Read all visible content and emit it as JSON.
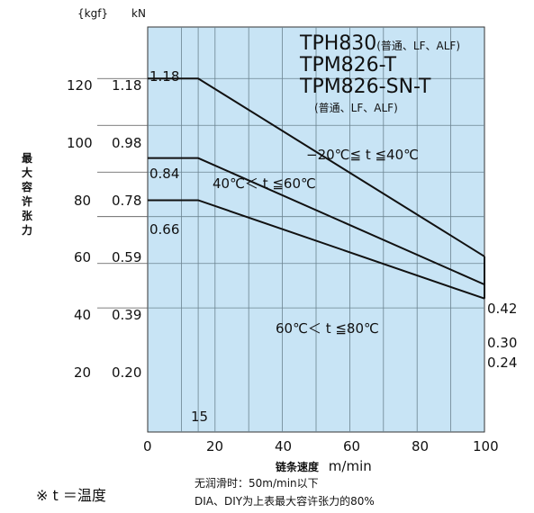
{
  "chart_data": {
    "type": "line",
    "title": "",
    "models": {
      "line1": "TPH830",
      "line1_suffix": "(普通、LF、ALF)",
      "line2": "TPM826-T",
      "line3": "TPM826-SN-T",
      "line3_suffix": "(普通、LF、ALF)"
    },
    "xlabel": "链条速度",
    "xunit": "m/min",
    "ylabel": "最大容许张力",
    "ylabel_kgf": "{kgf}",
    "ylabel_kn": "kN",
    "xlim": [
      0,
      100
    ],
    "ylim_kN": [
      -0.33,
      1.4
    ],
    "x_ticks": [
      "0",
      "20",
      "40",
      "60",
      "80",
      "100"
    ],
    "y_ticks_kgf": [
      "120",
      "100",
      "80",
      "60",
      "40",
      "20"
    ],
    "y_ticks_kn": [
      "1.18",
      "0.98",
      "0.78",
      "0.59",
      "0.39",
      "0.20"
    ],
    "y_tick_values_kN": [
      1.18,
      0.98,
      0.78,
      0.59,
      0.39,
      0.2
    ],
    "special_x_tick": "15",
    "special_x_value": 15,
    "grid": true,
    "series": [
      {
        "name": "−20℃≦ t ≦40℃",
        "x": [
          0,
          15,
          100
        ],
        "y": [
          1.18,
          1.18,
          0.42
        ],
        "start_label": "1.18",
        "end_label": "0.42"
      },
      {
        "name": "40℃＜ t ≦60℃",
        "x": [
          0,
          15,
          100
        ],
        "y": [
          0.84,
          0.84,
          0.3
        ],
        "start_label": "0.84",
        "end_label": "0.30"
      },
      {
        "name": "60℃＜ t ≦80℃",
        "x": [
          0,
          15,
          100
        ],
        "y": [
          0.66,
          0.66,
          0.24
        ],
        "start_label": "0.66",
        "end_label": "0.24"
      }
    ]
  },
  "notes": {
    "temp": "※ t ＝温度",
    "note1": "无润滑时：50m/min以下",
    "note2": "DIA、DIY为上表最大容许张力的80%"
  },
  "colors": {
    "plot_bg": "#c8e4f5",
    "grid": "#6b8390",
    "line": "#111111"
  }
}
